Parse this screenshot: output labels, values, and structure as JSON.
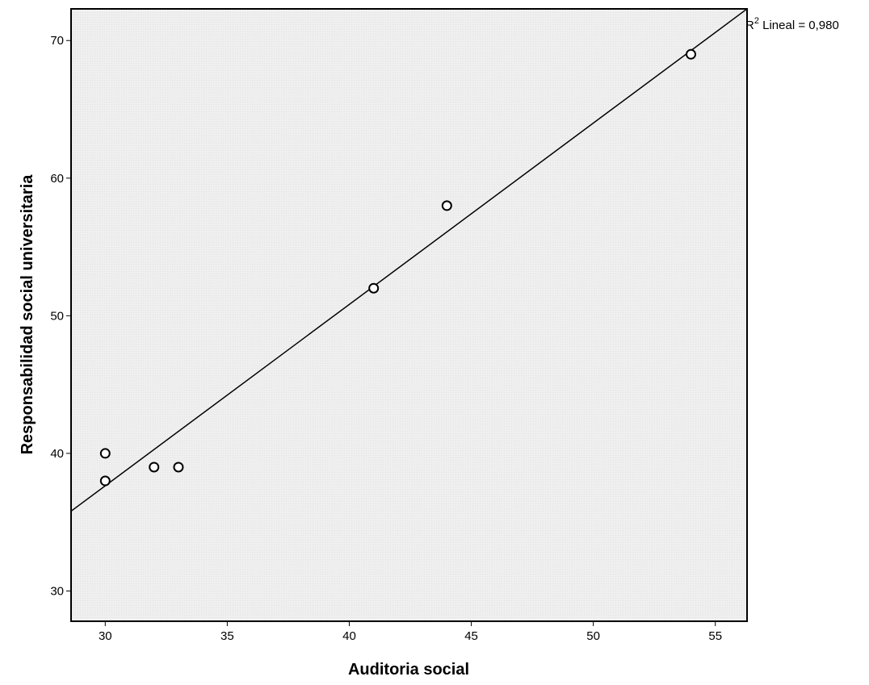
{
  "chart_data": {
    "type": "scatter",
    "xlabel": "Auditoria social",
    "ylabel": "Responsabilidad social universitaria",
    "xlim": [
      28.6,
      56.3
    ],
    "ylim": [
      27.8,
      72.3
    ],
    "xticks": [
      30,
      35,
      40,
      45,
      50,
      55
    ],
    "yticks": [
      30,
      40,
      50,
      60,
      70
    ],
    "grid": false,
    "plot_background": "#eeeeee",
    "points": [
      {
        "x": 30,
        "y": 40
      },
      {
        "x": 30,
        "y": 38
      },
      {
        "x": 32,
        "y": 39
      },
      {
        "x": 33,
        "y": 39
      },
      {
        "x": 41,
        "y": 52
      },
      {
        "x": 44,
        "y": 58
      },
      {
        "x": 54,
        "y": 69
      }
    ],
    "fit_line": {
      "type": "linear",
      "start": {
        "x": 28.6,
        "y": 35.8
      },
      "end": {
        "x": 56.3,
        "y": 72.3
      },
      "label_prefix": "R",
      "label_sup": "2",
      "label_suffix": " Lineal = 0,980"
    }
  }
}
